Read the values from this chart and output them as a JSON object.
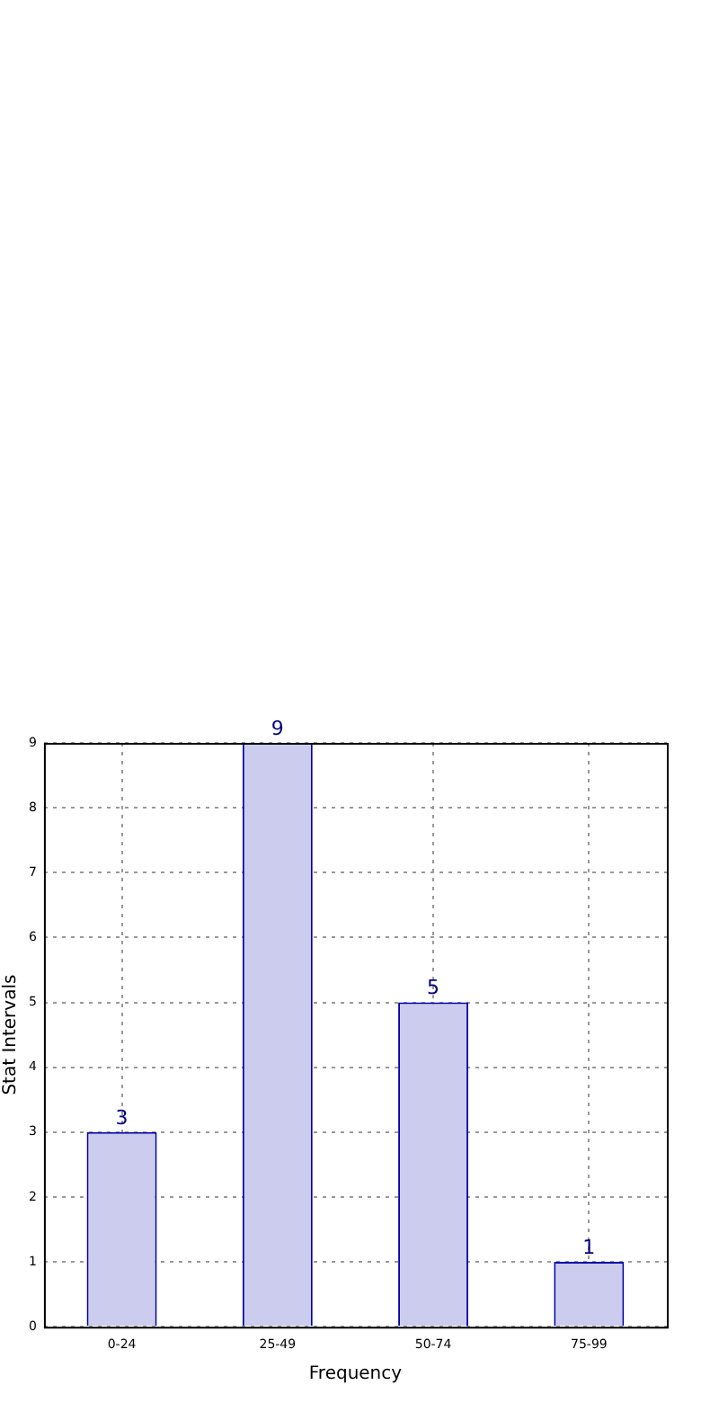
{
  "chart_data": {
    "type": "bar",
    "xlabel": "Frequency",
    "ylabel": "Stat Intervals",
    "categories": [
      "0-24",
      "25-49",
      "50-74",
      "75-99"
    ],
    "values": [
      3,
      9,
      5,
      1
    ],
    "color": "#ccccee",
    "ylim": [
      0,
      9
    ],
    "yticks": [
      0,
      1,
      2,
      3,
      4,
      5,
      6,
      7,
      8,
      9
    ],
    "grid": true,
    "data_labels": true,
    "legend": false
  }
}
